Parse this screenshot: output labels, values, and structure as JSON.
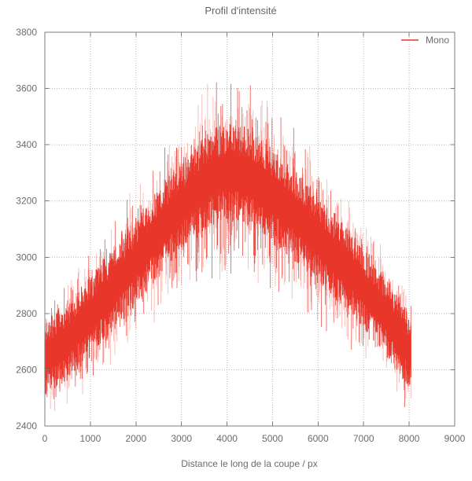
{
  "figure": {
    "title": "Profil d'intensité",
    "background": "#ffffff"
  },
  "colors": {
    "series": "#e8362b",
    "text": "#6b6b6b",
    "grid": "#b5b5b5",
    "border": "#7d7d7d",
    "background": "#ffffff"
  },
  "legend": {
    "label": "Mono",
    "line_color": "#e8362b"
  },
  "chart_data": {
    "type": "line",
    "title": "Profil d'intensité",
    "xlabel": "Distance le long de la coupe / px",
    "ylabel": "",
    "xlim": [
      0,
      9000
    ],
    "ylim": [
      2400,
      3800
    ],
    "xticks": [
      0,
      1000,
      2000,
      3000,
      4000,
      5000,
      6000,
      7000,
      8000,
      9000
    ],
    "yticks": [
      2400,
      2600,
      2800,
      3000,
      3200,
      3400,
      3600,
      3800
    ],
    "grid": true,
    "grid_style": "dotted",
    "legend_position": "top-right-inside",
    "series": [
      {
        "name": "Mono",
        "color": "#e8362b",
        "style": "high-frequency-noisy-line",
        "x_start": 0,
        "x_end": 8050,
        "noise_seed": 1337,
        "envelope": {
          "x": [
            0,
            500,
            1000,
            1500,
            2000,
            2500,
            3000,
            3500,
            3800,
            4100,
            4400,
            4700,
            5000,
            5500,
            6000,
            6500,
            7000,
            7500,
            8050
          ],
          "center": [
            2635,
            2705,
            2790,
            2885,
            2990,
            3090,
            3180,
            3260,
            3295,
            3300,
            3290,
            3265,
            3215,
            3150,
            3065,
            2980,
            2890,
            2790,
            2655
          ],
          "core_halfwidth": [
            140,
            143,
            147,
            152,
            157,
            162,
            166,
            171,
            174,
            175,
            174,
            172,
            170,
            165,
            159,
            153,
            147,
            143,
            140
          ],
          "spike_up": [
            85,
            95,
            110,
            125,
            140,
            155,
            170,
            185,
            193,
            197,
            193,
            187,
            180,
            168,
            155,
            140,
            126,
            110,
            90
          ],
          "spike_down": [
            90,
            105,
            125,
            145,
            165,
            185,
            205,
            235,
            255,
            265,
            255,
            240,
            225,
            205,
            185,
            160,
            135,
            110,
            95
          ]
        }
      }
    ]
  }
}
